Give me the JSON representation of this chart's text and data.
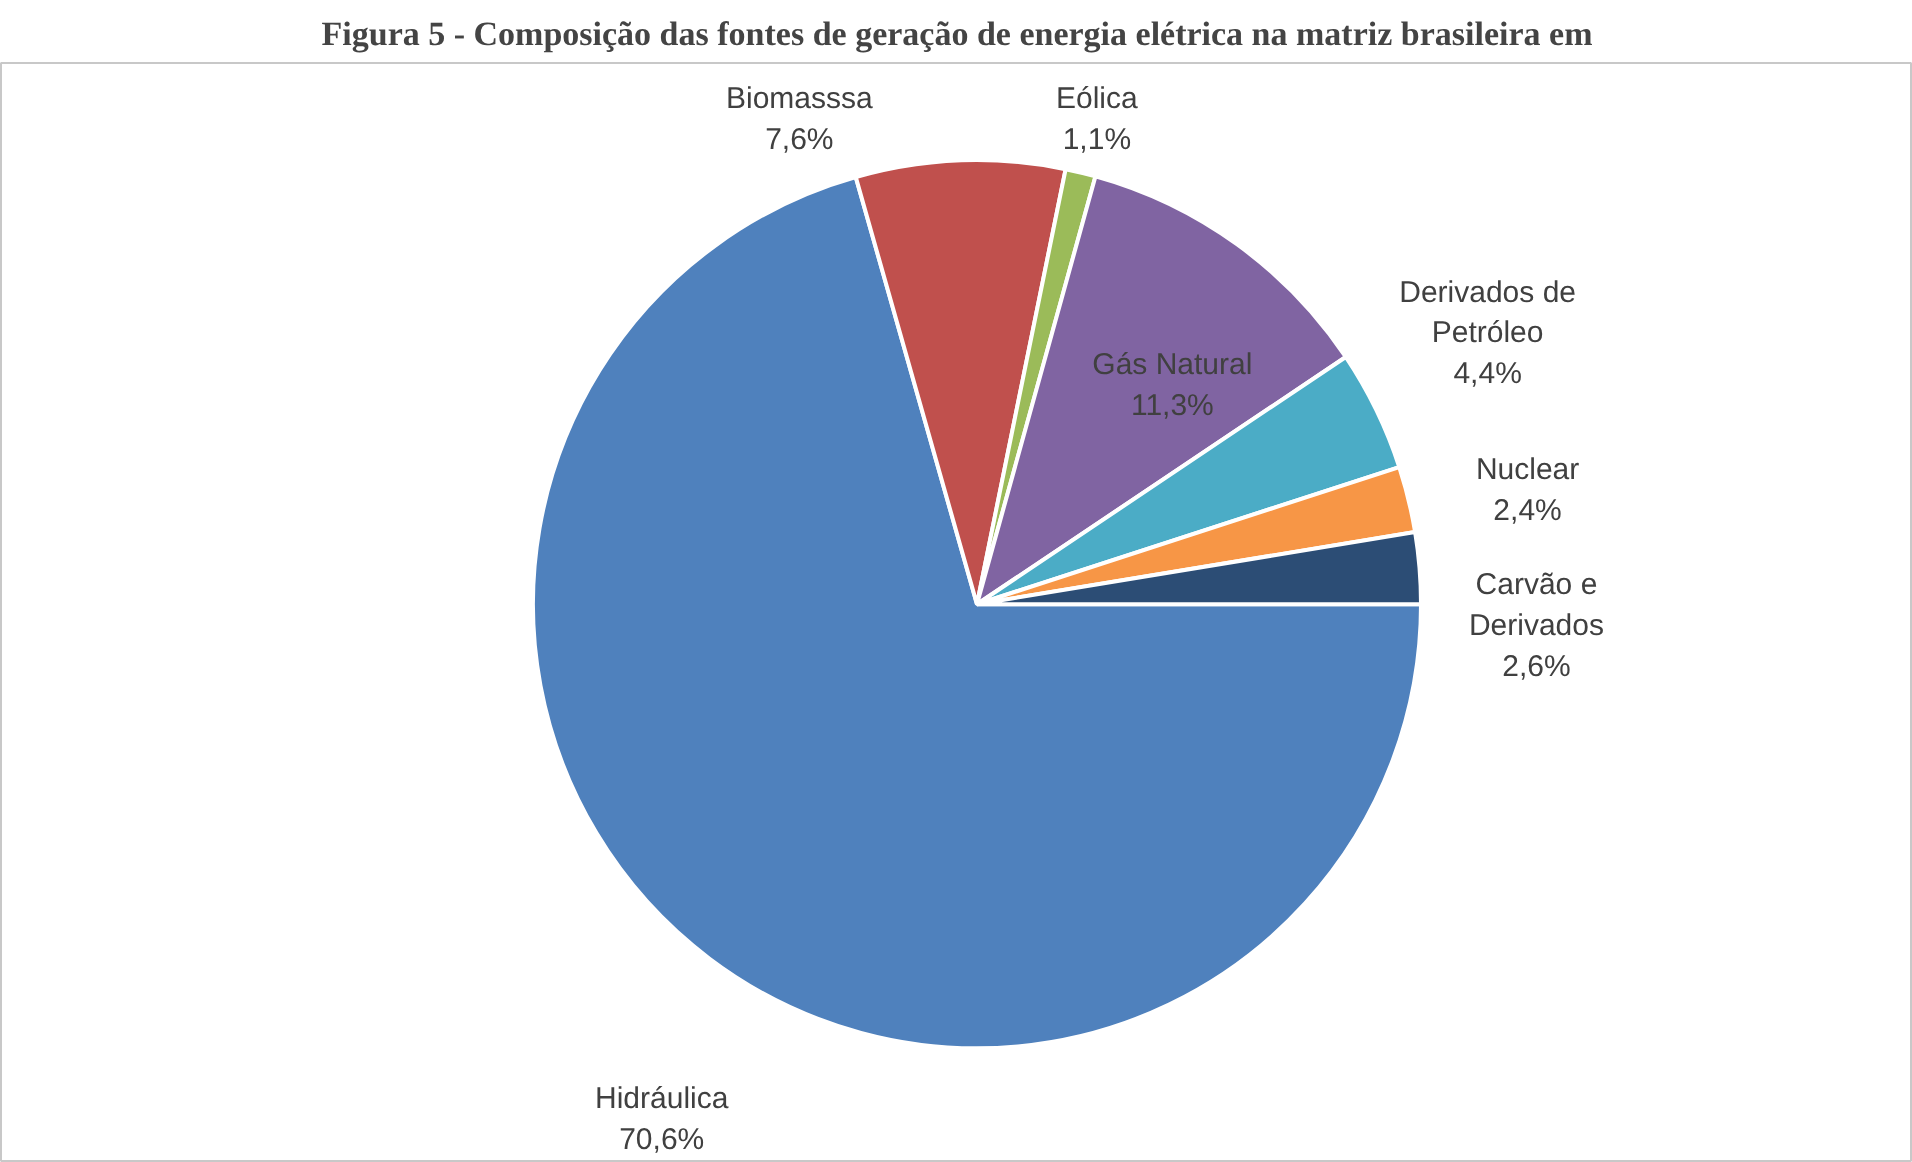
{
  "chart_data": {
    "type": "pie",
    "title": "Figura 5 - Composição das fontes de geração de energia elétrica na matriz brasileira em",
    "categories": [
      "Hidráulica",
      "Biomasssa",
      "Eólica",
      "Gás Natural",
      "Derivados de Petróleo",
      "Nuclear",
      "Carvão e Derivados"
    ],
    "values": [
      70.6,
      7.6,
      1.1,
      11.3,
      4.4,
      2.4,
      2.6
    ],
    "value_labels": [
      "70,6%",
      "7,6%",
      "1,1%",
      "11,3%",
      "4,4%",
      "2,4%",
      "2,6%"
    ],
    "colors": [
      "#4f81bd",
      "#c0504d",
      "#9bbb59",
      "#8064a2",
      "#4bacc6",
      "#f79646",
      "#2c4d75"
    ]
  }
}
